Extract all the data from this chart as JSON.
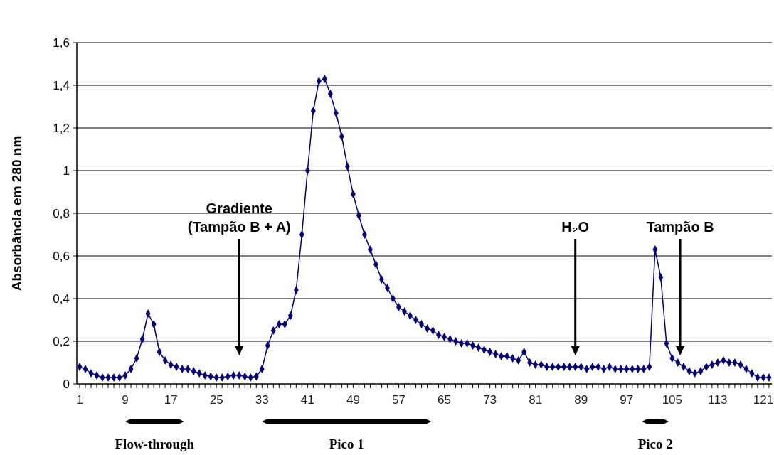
{
  "chart_data": {
    "type": "line",
    "ylabel": "Absorbância em 280 nm",
    "x": [
      1,
      2,
      3,
      4,
      5,
      6,
      7,
      8,
      9,
      10,
      11,
      12,
      13,
      14,
      15,
      16,
      17,
      18,
      19,
      20,
      21,
      22,
      23,
      24,
      25,
      26,
      27,
      28,
      29,
      30,
      31,
      32,
      33,
      34,
      35,
      36,
      37,
      38,
      39,
      40,
      41,
      42,
      43,
      44,
      45,
      46,
      47,
      48,
      49,
      50,
      51,
      52,
      53,
      54,
      55,
      56,
      57,
      58,
      59,
      60,
      61,
      62,
      63,
      64,
      65,
      66,
      67,
      68,
      69,
      70,
      71,
      72,
      73,
      74,
      75,
      76,
      77,
      78,
      79,
      80,
      81,
      82,
      83,
      84,
      85,
      86,
      87,
      88,
      89,
      90,
      91,
      92,
      93,
      94,
      95,
      96,
      97,
      98,
      99,
      100,
      101,
      102,
      103,
      104,
      105,
      106,
      107,
      108,
      109,
      110,
      111,
      112,
      113,
      114,
      115,
      116,
      117,
      118,
      119,
      120,
      121,
      122
    ],
    "series": [
      {
        "color": "#000080",
        "values": [
          0.08,
          0.07,
          0.05,
          0.04,
          0.03,
          0.03,
          0.03,
          0.03,
          0.04,
          0.07,
          0.12,
          0.21,
          0.33,
          0.28,
          0.15,
          0.11,
          0.09,
          0.08,
          0.07,
          0.07,
          0.06,
          0.05,
          0.04,
          0.035,
          0.03,
          0.03,
          0.035,
          0.04,
          0.04,
          0.035,
          0.03,
          0.035,
          0.07,
          0.18,
          0.25,
          0.28,
          0.28,
          0.32,
          0.44,
          0.7,
          1.0,
          1.28,
          1.42,
          1.43,
          1.36,
          1.27,
          1.16,
          1.02,
          0.89,
          0.79,
          0.7,
          0.63,
          0.56,
          0.49,
          0.45,
          0.4,
          0.36,
          0.34,
          0.32,
          0.3,
          0.28,
          0.26,
          0.25,
          0.23,
          0.22,
          0.21,
          0.2,
          0.19,
          0.19,
          0.18,
          0.17,
          0.16,
          0.15,
          0.14,
          0.13,
          0.13,
          0.12,
          0.11,
          0.15,
          0.1,
          0.09,
          0.09,
          0.08,
          0.08,
          0.08,
          0.08,
          0.08,
          0.08,
          0.08,
          0.07,
          0.08,
          0.08,
          0.07,
          0.08,
          0.07,
          0.07,
          0.07,
          0.07,
          0.07,
          0.07,
          0.08,
          0.63,
          0.5,
          0.19,
          0.12,
          0.1,
          0.08,
          0.06,
          0.05,
          0.06,
          0.08,
          0.09,
          0.1,
          0.11,
          0.1,
          0.1,
          0.09,
          0.07,
          0.05,
          0.03,
          0.03,
          0.03
        ]
      }
    ],
    "xlim": [
      0.5,
      122.5
    ],
    "xticks": [
      1,
      9,
      17,
      25,
      33,
      41,
      49,
      57,
      65,
      73,
      81,
      89,
      97,
      105,
      113,
      121
    ],
    "ylim": [
      0,
      1.6
    ],
    "yticks": [
      0,
      {
        "value": 0.2,
        "label": "0,2"
      },
      {
        "value": 0.4,
        "label": "0,4"
      },
      {
        "value": 0.6,
        "label": "0,6"
      },
      {
        "value": 0.8,
        "label": "0,8"
      },
      1,
      {
        "value": 1.2,
        "label": "1,2"
      },
      {
        "value": 1.4,
        "label": "1,4"
      },
      {
        "value": 1.6,
        "label": "1,6"
      }
    ],
    "grid": "y",
    "marker": "diamond",
    "line_style": "solid",
    "annotations": [
      "Gradiente\n(Tampão B + A)",
      "H₂O",
      "Tampão B",
      "Flow-through",
      "Pico 1",
      "Pico 2"
    ]
  }
}
